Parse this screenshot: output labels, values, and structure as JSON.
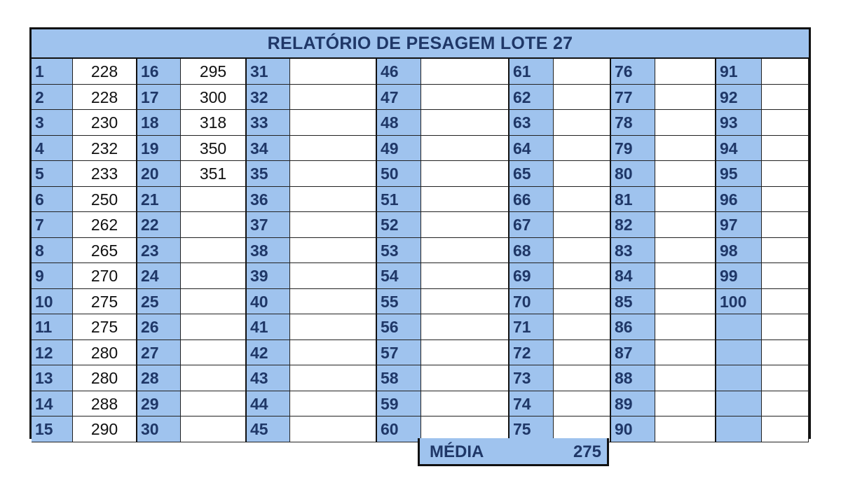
{
  "title": "RELATÓRIO DE PESAGEM LOTE 27",
  "weights": {
    "1": "228",
    "2": "228",
    "3": "230",
    "4": "232",
    "5": "233",
    "6": "250",
    "7": "262",
    "8": "265",
    "9": "270",
    "10": "275",
    "11": "275",
    "12": "280",
    "13": "280",
    "14": "288",
    "15": "290",
    "16": "295",
    "17": "300",
    "18": "318",
    "19": "350",
    "20": "351"
  },
  "average_label": "MÉDIA",
  "average_value": "275",
  "colors": {
    "header_fill": "#9fc3ee",
    "header_text": "#1f3767",
    "border": "#111111"
  }
}
